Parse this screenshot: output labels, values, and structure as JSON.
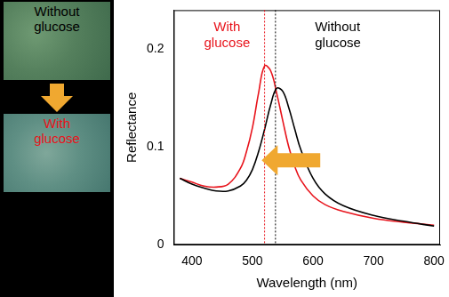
{
  "chart_data": {
    "type": "line",
    "x_label": "Wavelength (nm)",
    "y_label": "Reflectance",
    "x": [
      380,
      400,
      420,
      440,
      460,
      480,
      490,
      500,
      510,
      520,
      530,
      540,
      550,
      560,
      570,
      580,
      600,
      620,
      650,
      700,
      750,
      800
    ],
    "series": [
      {
        "name": "Without glucose",
        "color": "#000000",
        "values": [
          0.068,
          0.062,
          0.058,
          0.055,
          0.055,
          0.06,
          0.066,
          0.077,
          0.095,
          0.118,
          0.143,
          0.16,
          0.157,
          0.14,
          0.118,
          0.097,
          0.068,
          0.052,
          0.04,
          0.03,
          0.024,
          0.019
        ]
      },
      {
        "name": "With glucose",
        "color": "#e8141c",
        "values": [
          0.068,
          0.064,
          0.06,
          0.059,
          0.062,
          0.078,
          0.095,
          0.12,
          0.155,
          0.183,
          0.178,
          0.155,
          0.127,
          0.1,
          0.08,
          0.066,
          0.05,
          0.041,
          0.034,
          0.027,
          0.023,
          0.02
        ]
      }
    ],
    "xlim": [
      370,
      810
    ],
    "xticks": [
      400,
      500,
      600,
      700,
      800
    ],
    "ylim": [
      0,
      0.24
    ],
    "yticks": [
      0,
      0.1,
      0.2
    ],
    "grid": false,
    "legend": "none",
    "peak_lines": [
      {
        "x": 520,
        "color": "#e8141c"
      },
      {
        "x": 538,
        "color": "#000000"
      }
    ],
    "annotations": [
      {
        "text": "With glucose",
        "color": "#e8141c"
      },
      {
        "text": "Without glucose",
        "color": "#000000"
      }
    ]
  },
  "photos": [
    {
      "label": "Without glucose",
      "color": "#000000"
    },
    {
      "label": "With glucose",
      "color": "#e8141c"
    }
  ]
}
